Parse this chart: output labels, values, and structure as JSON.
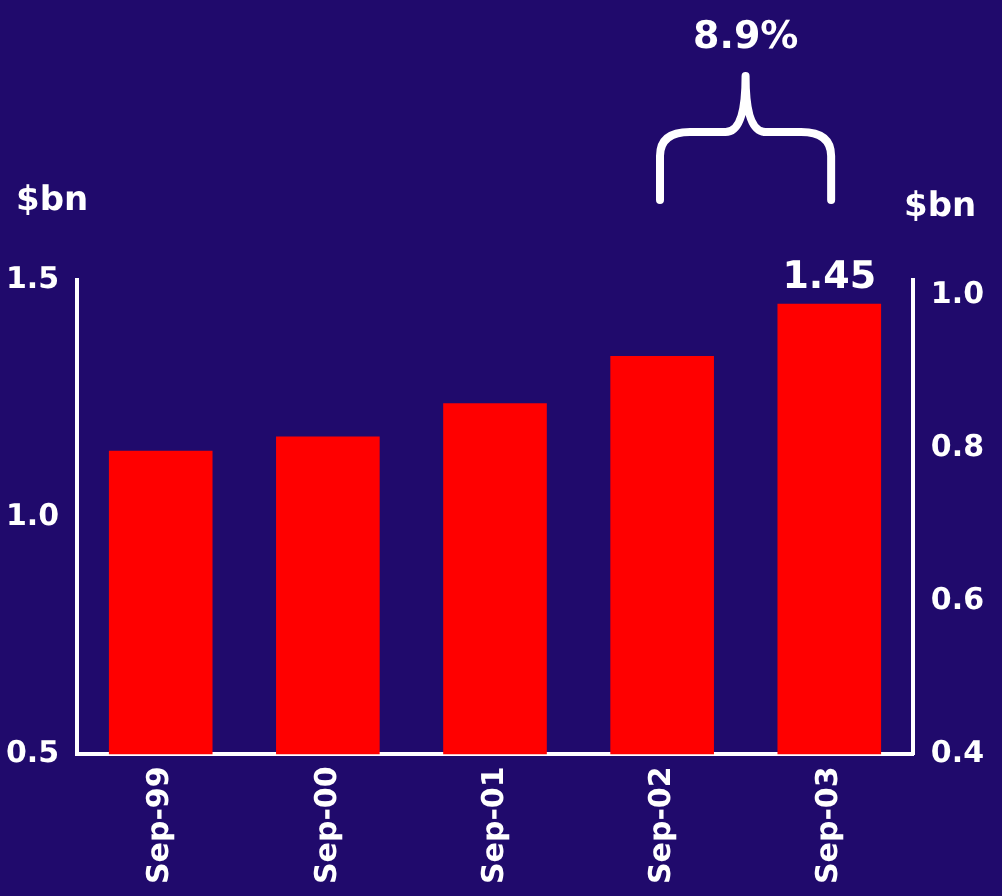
{
  "chart_data": {
    "type": "bar",
    "categories": [
      "Sep-99",
      "Sep-00",
      "Sep-01",
      "Sep-02",
      "Sep-03"
    ],
    "values": [
      1.14,
      1.17,
      1.24,
      1.34,
      1.45
    ],
    "color": "#ff0000",
    "value_labels": [
      null,
      null,
      null,
      null,
      "1.45"
    ],
    "ylabel": "$bn",
    "y2label": "$bn",
    "ylim": [
      0.5,
      1.5
    ],
    "yticks": [
      {
        "value": 0.5,
        "label": "0.5"
      },
      {
        "value": 1,
        "label": "1.0"
      },
      {
        "value": 1.5,
        "label": "1.5"
      }
    ],
    "y2lim": [
      0.4,
      1.02
    ],
    "y2ticks": [
      {
        "value": 0.4,
        "label": "0.4"
      },
      {
        "value": 0.6,
        "label": "0.6"
      },
      {
        "value": 0.8,
        "label": "0.8"
      },
      {
        "value": 1,
        "label": "1.0"
      }
    ],
    "annotations": [
      "8.9%"
    ],
    "grid": false,
    "legend": false
  }
}
